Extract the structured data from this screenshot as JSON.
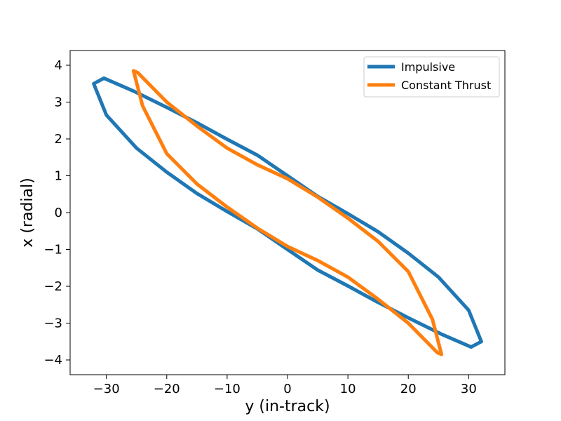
{
  "chart_data": {
    "type": "line",
    "xlabel": "y (in-track)",
    "ylabel": "x (radial)",
    "xlim": [
      -36,
      36
    ],
    "ylim": [
      -4.4,
      4.4
    ],
    "xticks": [
      -30,
      -20,
      -10,
      0,
      10,
      20,
      30
    ],
    "yticks": [
      -4,
      -3,
      -2,
      -1,
      0,
      1,
      2,
      3,
      4
    ],
    "xtick_labels": [
      "−30",
      "−20",
      "−10",
      "0",
      "10",
      "20",
      "30"
    ],
    "ytick_labels": [
      "−4",
      "−3",
      "−2",
      "−1",
      "0",
      "1",
      "2",
      "3",
      "4"
    ],
    "grid": false,
    "legend_position": "top-right",
    "series": [
      {
        "name": "Impulsive",
        "color": "#1f77b4",
        "x": [
          -32.1,
          -30.4,
          -25.5,
          -20.3,
          -14.8,
          -10.0,
          -5.0,
          0.0,
          5.0,
          10.0,
          15.0,
          20.0,
          25.0,
          30.0,
          32.1,
          30.4,
          25.5,
          20.3,
          14.8,
          10.0,
          5.0,
          0.0,
          -5.0,
          -10.0,
          -15.0,
          -20.0,
          -25.0,
          -30.0,
          -32.1
        ],
        "y": [
          3.5,
          3.65,
          3.3,
          2.88,
          2.42,
          1.99,
          1.56,
          1.0,
          0.44,
          -0.03,
          -0.52,
          -1.1,
          -1.75,
          -2.65,
          -3.5,
          -3.65,
          -3.3,
          -2.88,
          -2.42,
          -1.99,
          -1.56,
          -1.0,
          -0.44,
          0.03,
          0.52,
          1.1,
          1.75,
          2.65,
          3.5
        ]
      },
      {
        "name": "Constant Thrust",
        "color": "#ff7f0e",
        "x": [
          -25.5,
          -24.8,
          -20.0,
          -15.0,
          -10.0,
          -5.0,
          0.0,
          5.0,
          10.0,
          15.0,
          20.0,
          24.0,
          25.5,
          24.8,
          20.0,
          15.0,
          10.0,
          5.0,
          0.0,
          -5.0,
          -10.0,
          -15.0,
          -20.0,
          -24.0,
          -25.5
        ],
        "y": [
          3.85,
          3.8,
          3.0,
          2.35,
          1.75,
          1.3,
          0.92,
          0.42,
          -0.15,
          -0.78,
          -1.6,
          -2.9,
          -3.85,
          -3.8,
          -3.0,
          -2.35,
          -1.75,
          -1.3,
          -0.92,
          -0.42,
          0.15,
          0.78,
          1.6,
          2.9,
          3.85
        ]
      }
    ]
  }
}
